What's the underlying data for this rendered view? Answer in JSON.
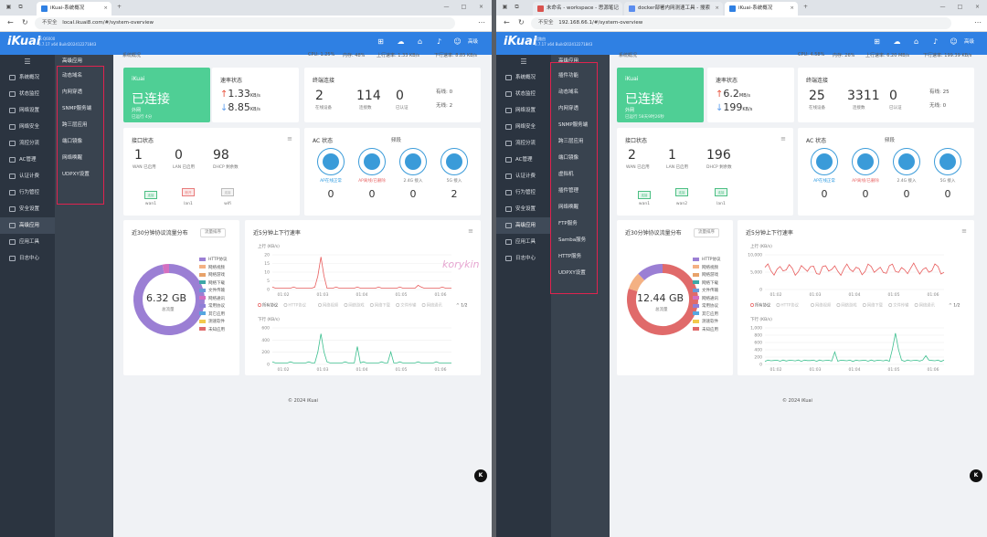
{
  "left": {
    "tabs": [
      {
        "title": "iKuai-系统概况"
      }
    ],
    "address": {
      "security": "不安全",
      "url": "local.ikuai8.com/#/system-overview"
    },
    "version": {
      "model": "IK-Q6000",
      "build": "3.7.17 x64 Build202412271843"
    },
    "user": "高级",
    "sidebar": [
      "系统概况",
      "状态监控",
      "网络设置",
      "网络安全",
      "流控分流",
      "AC管理",
      "认证计费",
      "行为管控",
      "安全设置",
      "高级应用",
      "应用工具",
      "日志中心"
    ],
    "active_index": 9,
    "submenu_title": "高级应用",
    "submenu": [
      "动态域名",
      "内网穿透",
      "SNMP服务端",
      "跨三层应用",
      "端口镜像",
      "网络唤醒",
      "UDPXY设置"
    ],
    "breadcrumb": "系统概况",
    "statusbar": {
      "cpu": "CPU: 1.25%",
      "mem": "内存: 48%",
      "up": "上行速率: 1.33 KB/s",
      "down": "下行速率: 8.85 KB/s"
    },
    "connection": {
      "brand": "iKuai",
      "state": "已连接",
      "network": "外网",
      "uptime": "已运行 4分"
    },
    "rate": {
      "title": "速率状态",
      "up": "1.33",
      "down": "8.85",
      "unit": "KB/s"
    },
    "conn": {
      "title": "终端连接",
      "devices": "2",
      "devices_label": "在线设备",
      "connections": "114",
      "connections_label": "连接数",
      "auth": "0",
      "auth_label": "已认证",
      "wired": "有线: 0",
      "wireless": "无线: 2"
    },
    "interface": {
      "title": "接口状态",
      "wan": "1",
      "wan_label": "WAN 已启用",
      "lan": "0",
      "lan_label": "LAN 已启用",
      "dhcp": "98",
      "dhcp_label": "DHCP 剩余数",
      "ports": [
        {
          "tag": "连接",
          "name": "wan1"
        },
        {
          "tag": "断开",
          "name": "lan1"
        },
        {
          "tag": "连接",
          "name": "wifi"
        }
      ]
    },
    "ac": {
      "title": "AC 状态",
      "freq": "频段",
      "items": [
        {
          "label": "AP在线正常",
          "val": "0"
        },
        {
          "label": "AP离线/已删除",
          "val": "0"
        },
        {
          "label": "2.4G 接入",
          "val": "0"
        },
        {
          "label": "5G 接入",
          "val": "2"
        }
      ]
    },
    "traffic": {
      "title": "近30分钟协议流量分布",
      "select": "流量排序",
      "total": "6.32 GB",
      "total_label": "总流量"
    },
    "proto_chart": {
      "title": "近5分钟上下行速率",
      "up_axis": "上行 (KB/s)",
      "up_ticks": [
        "20",
        "15",
        "10",
        "5",
        "0"
      ],
      "down_axis": "下行 (KB/s)",
      "down_ticks": [
        "600",
        "400",
        "200",
        "0"
      ],
      "x": [
        "01:02",
        "01:03",
        "01:04",
        "01:05",
        "01:06"
      ],
      "legend_page": "1/2"
    },
    "footer": "© 2024 iKuai"
  },
  "right": {
    "tabs": [
      {
        "title": "未命名 - workspace - 思源笔记"
      },
      {
        "title": "docker部署内网测速工具 - 搜索"
      },
      {
        "title": "iKuai-系统概况"
      }
    ],
    "address": {
      "security": "不安全",
      "url": "192.168.66.1/#/system-overview"
    },
    "version": {
      "model": "软路由",
      "build": "3.7.17 x64 Build202412271843"
    },
    "user": "高级",
    "sidebar": [
      "系统概况",
      "状态监控",
      "网络设置",
      "网络安全",
      "流控分流",
      "AC管理",
      "认证计费",
      "行为管控",
      "安全设置",
      "高级应用",
      "应用工具",
      "日志中心"
    ],
    "active_index": 9,
    "submenu_title": "高级应用",
    "submenu": [
      "插件功能",
      "动态域名",
      "内网穿透",
      "SNMP服务端",
      "跨三层应用",
      "端口镜像",
      "虚拟机",
      "插件管理",
      "网络唤醒",
      "FTP服务",
      "Samba服务",
      "HTTP服务",
      "UDPXY设置"
    ],
    "breadcrumb": "系统概况",
    "statusbar": {
      "cpu": "CPU: 4.58%",
      "mem": "内存: 26%",
      "up": "上行速率: 6.20 MB/s",
      "down": "下行速率: 199.39 KB/s"
    },
    "connection": {
      "brand": "iKuai",
      "state": "已连接",
      "network": "外网",
      "uptime": "已运行 58天9时26秒"
    },
    "rate": {
      "title": "速率状态",
      "up": "6.2",
      "up_unit": "MB/s",
      "down": "199",
      "down_unit": "KB/s"
    },
    "conn": {
      "title": "终端连接",
      "devices": "25",
      "devices_label": "在线设备",
      "connections": "3311",
      "connections_label": "连接数",
      "auth": "0",
      "auth_label": "已认证",
      "wired": "有线: 25",
      "wireless": "无线: 0"
    },
    "interface": {
      "title": "接口状态",
      "wan": "2",
      "wan_label": "WAN 已启用",
      "lan": "1",
      "lan_label": "LAN 已启用",
      "dhcp": "196",
      "dhcp_label": "DHCP 剩余数",
      "ports": [
        {
          "tag": "连接",
          "name": "wan1"
        },
        {
          "tag": "连接",
          "name": "wan2"
        },
        {
          "tag": "连接",
          "name": "lan1"
        }
      ]
    },
    "ac": {
      "title": "AC 状态",
      "freq": "频段",
      "items": [
        {
          "label": "AP在线正常",
          "val": "0"
        },
        {
          "label": "AP离线/已删除",
          "val": "0"
        },
        {
          "label": "2.4G 接入",
          "val": "0"
        },
        {
          "label": "5G 接入",
          "val": "0"
        }
      ]
    },
    "traffic": {
      "title": "近30分钟协议流量分布",
      "select": "流量排序",
      "total": "12.44 GB",
      "total_label": "总流量"
    },
    "proto_chart": {
      "title": "近5分钟上下行速率",
      "up_axis": "上行 (KB/s)",
      "up_ticks": [
        "10,000",
        "5,000",
        "0"
      ],
      "down_axis": "下行 (KB/s)",
      "down_ticks": [
        "1,000",
        "800",
        "600",
        "400",
        "200",
        "0"
      ],
      "x": [
        "01:02",
        "01:03",
        "01:04",
        "01:05",
        "01:06"
      ],
      "legend_page": "1/2"
    },
    "footer": "© 2024 iKuai"
  },
  "legend_items": [
    "HTTP协议",
    "网络视频",
    "网络游戏",
    "网络下载",
    "文件传输",
    "网络通讯",
    "常用协议",
    "其它应用",
    "测速软件",
    "未知应用"
  ],
  "legend_colors": [
    "#9b7fd4",
    "#f4b183",
    "#e8a26a",
    "#3da7a7",
    "#6a9ad8",
    "#d36fc0",
    "#8e7fd6",
    "#56a6e0",
    "#f2c94c",
    "#e06a6a"
  ],
  "rate_legend": [
    "所有协议",
    "HTTP协议",
    "网络视频",
    "网络游戏",
    "网络下载",
    "文件传输",
    "网络通讯"
  ],
  "watermark": "korykin",
  "colors": {
    "brand": "#2f80e3",
    "connected": "#4fcf95",
    "up_line": "#e85c5c",
    "down_line": "#3bbf8e"
  }
}
